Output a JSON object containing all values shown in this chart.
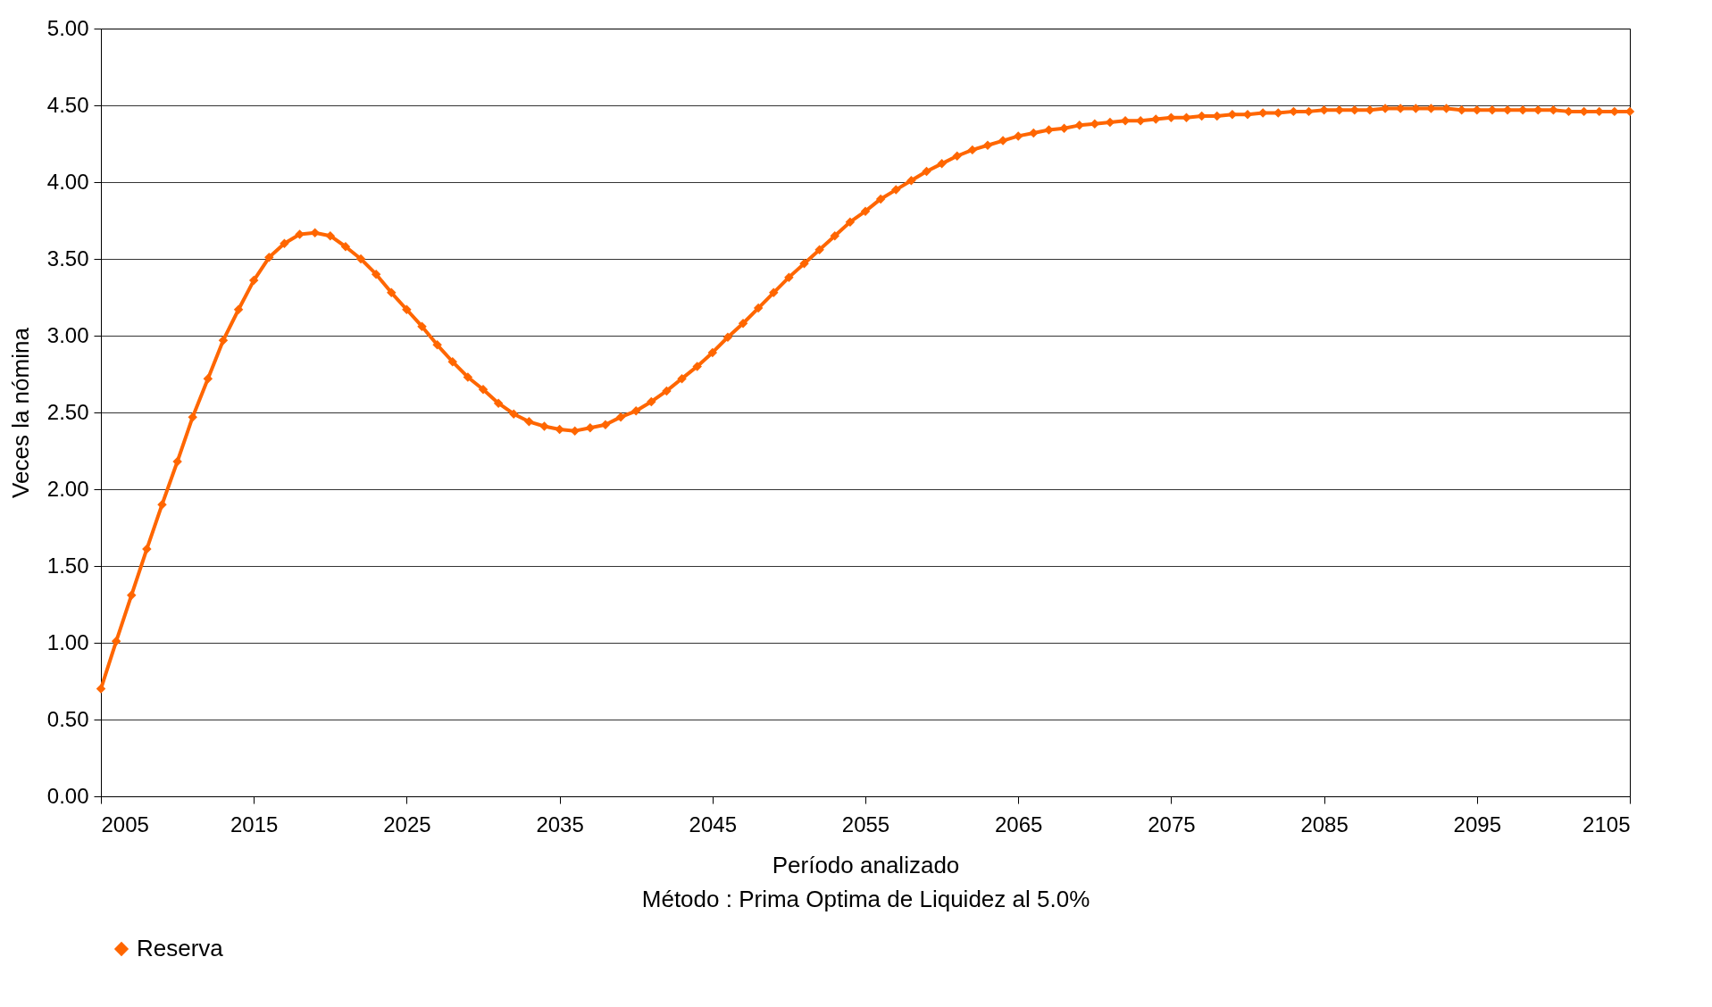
{
  "chart_data": {
    "type": "line",
    "xlabel": "Período analizado",
    "ylabel": "Veces la nómina",
    "annotations": [
      "Método : Prima Optima de Liquidez al 5.0%"
    ],
    "x": [
      2005,
      2006,
      2007,
      2008,
      2009,
      2010,
      2011,
      2012,
      2013,
      2014,
      2015,
      2016,
      2017,
      2018,
      2019,
      2020,
      2021,
      2022,
      2023,
      2024,
      2025,
      2026,
      2027,
      2028,
      2029,
      2030,
      2031,
      2032,
      2033,
      2034,
      2035,
      2036,
      2037,
      2038,
      2039,
      2040,
      2041,
      2042,
      2043,
      2044,
      2045,
      2046,
      2047,
      2048,
      2049,
      2050,
      2051,
      2052,
      2053,
      2054,
      2055,
      2056,
      2057,
      2058,
      2059,
      2060,
      2061,
      2062,
      2063,
      2064,
      2065,
      2066,
      2067,
      2068,
      2069,
      2070,
      2071,
      2072,
      2073,
      2074,
      2075,
      2076,
      2077,
      2078,
      2079,
      2080,
      2081,
      2082,
      2083,
      2084,
      2085,
      2086,
      2087,
      2088,
      2089,
      2090,
      2091,
      2092,
      2093,
      2094,
      2095,
      2096,
      2097,
      2098,
      2099,
      2100,
      2101,
      2102,
      2103,
      2104,
      2105
    ],
    "series": [
      {
        "name": "Reserva",
        "color": "#ff6600",
        "values": [
          0.7,
          1.01,
          1.31,
          1.61,
          1.9,
          2.18,
          2.47,
          2.72,
          2.97,
          3.17,
          3.36,
          3.51,
          3.6,
          3.66,
          3.67,
          3.65,
          3.58,
          3.5,
          3.4,
          3.28,
          3.17,
          3.06,
          2.94,
          2.83,
          2.73,
          2.65,
          2.56,
          2.49,
          2.44,
          2.41,
          2.39,
          2.38,
          2.4,
          2.42,
          2.47,
          2.51,
          2.57,
          2.64,
          2.72,
          2.8,
          2.89,
          2.99,
          3.08,
          3.18,
          3.28,
          3.38,
          3.47,
          3.56,
          3.65,
          3.74,
          3.81,
          3.89,
          3.95,
          4.01,
          4.07,
          4.12,
          4.17,
          4.21,
          4.24,
          4.27,
          4.3,
          4.32,
          4.34,
          4.35,
          4.37,
          4.38,
          4.39,
          4.4,
          4.4,
          4.41,
          4.42,
          4.42,
          4.43,
          4.43,
          4.44,
          4.44,
          4.45,
          4.45,
          4.46,
          4.46,
          4.47,
          4.47,
          4.47,
          4.47,
          4.48,
          4.48,
          4.48,
          4.48,
          4.48,
          4.47,
          4.47,
          4.47,
          4.47,
          4.47,
          4.47,
          4.47,
          4.46,
          4.46,
          4.46,
          4.46,
          4.46
        ]
      }
    ],
    "xlim": [
      2005,
      2105
    ],
    "xticks": [
      2005,
      2015,
      2025,
      2035,
      2045,
      2055,
      2065,
      2075,
      2085,
      2095,
      2105
    ],
    "ylim": [
      0,
      5
    ],
    "yticks": [
      {
        "value": 0,
        "label": "0.00"
      },
      {
        "value": 0.5,
        "label": "0.50"
      },
      {
        "value": 1,
        "label": "1.00"
      },
      {
        "value": 1.5,
        "label": "1.50"
      },
      {
        "value": 2,
        "label": "2.00"
      },
      {
        "value": 2.5,
        "label": "2.50"
      },
      {
        "value": 3,
        "label": "3.00"
      },
      {
        "value": 3.5,
        "label": "3.50"
      },
      {
        "value": 4,
        "label": "4.00"
      },
      {
        "value": 4.5,
        "label": "4.50"
      },
      {
        "value": 5,
        "label": "5.00"
      }
    ],
    "grid": "y",
    "legend": "bottom",
    "marker": "diamond",
    "line_style": "solid"
  }
}
